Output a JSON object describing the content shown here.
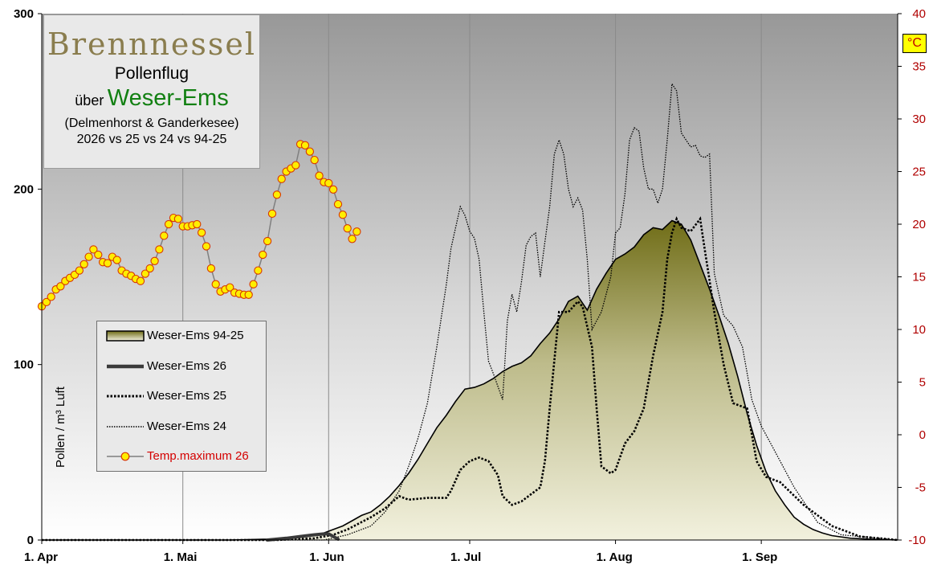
{
  "title": {
    "plant": "Brennnessel",
    "subtitle": "Pollenflug",
    "ueber": "über",
    "region": "Weser-Ems",
    "sites": "(Delmenhorst & Ganderkesee)",
    "comparison": "2026 vs 25 vs 24 vs 94-25"
  },
  "right_axis_unit": "°C",
  "legend": [
    {
      "label": "Weser-Ems 94-25"
    },
    {
      "label": "Weser-Ems 26"
    },
    {
      "label": "Weser-Ems 25"
    },
    {
      "label": "Weser-Ems 24"
    },
    {
      "label": "Temp.maximum 26"
    }
  ],
  "colors": {
    "area_top": "#6e6b14",
    "area_bottom": "#f2f1de",
    "temp_marker": "#ffee00",
    "temp_marker_edge": "#d83800",
    "temp_line": "#7f7f7f",
    "right_axis_text": "#b00000",
    "bg_top": "#989898",
    "bg_bottom": "#ffffff"
  },
  "chart_data": {
    "type": "area",
    "x_tick_labels": [
      "1. Apr",
      "1. Mai",
      "1. Jun",
      "1. Jul",
      "1. Aug",
      "1. Sep"
    ],
    "x_tick_days": [
      0,
      30,
      61,
      91,
      122,
      153
    ],
    "x_range_days": [
      0,
      182
    ],
    "ylabel": "Pollen / m³ Luft",
    "ylim": [
      0,
      300
    ],
    "y_ticks": [
      0,
      100,
      200,
      300
    ],
    "y2label": "°C",
    "y2lim": [
      -10,
      40
    ],
    "y2_ticks": [
      -10,
      -5,
      0,
      5,
      10,
      15,
      20,
      25,
      30,
      35,
      40
    ],
    "grid": "vertical lines at month starts",
    "legend_position": "left-bottom",
    "series": [
      {
        "name": "Weser-Ems 94-25",
        "style": "filled area",
        "x": [
          0,
          20,
          40,
          48,
          52,
          55,
          58,
          60,
          62,
          64,
          66,
          68,
          70,
          72,
          74,
          76,
          78,
          80,
          82,
          84,
          86,
          88,
          90,
          92,
          94,
          96,
          98,
          100,
          102,
          104,
          106,
          108,
          110,
          112,
          114,
          116,
          118,
          120,
          122,
          124,
          126,
          128,
          130,
          132,
          134,
          136,
          138,
          140,
          142,
          144,
          146,
          148,
          150,
          152,
          154,
          156,
          158,
          160,
          162,
          164,
          166,
          168,
          172,
          176,
          182
        ],
        "values": [
          0,
          0,
          0,
          0.5,
          1,
          2,
          3,
          4,
          6,
          8,
          11,
          14,
          16,
          20,
          25,
          31,
          38,
          46,
          55,
          64,
          71,
          79,
          86,
          87,
          89,
          92,
          96,
          99,
          101,
          105,
          112,
          118,
          126,
          136,
          139,
          131,
          143,
          152,
          160,
          163,
          167,
          174,
          178,
          177,
          182,
          180,
          171,
          157,
          143,
          128,
          112,
          93,
          72,
          54,
          39,
          28,
          20,
          13,
          9,
          6,
          4,
          2.5,
          1,
          0.5,
          0
        ]
      },
      {
        "name": "Weser-Ems 26",
        "style": "thick solid line",
        "x": [
          48,
          52,
          55,
          58,
          60,
          61,
          62,
          63
        ],
        "values": [
          0,
          1,
          2,
          3,
          3.5,
          3.5,
          2,
          0.5
        ]
      },
      {
        "name": "Weser-Ems 25",
        "style": "dotted thick line",
        "x": [
          0,
          50,
          58,
          62,
          65,
          70,
          73,
          76,
          78,
          82,
          86,
          87,
          89,
          91,
          93,
          95,
          97,
          98,
          100,
          102,
          104,
          106,
          107,
          108,
          110,
          112,
          113,
          114,
          115,
          117,
          118,
          119,
          120,
          121,
          122,
          124,
          126,
          128,
          130,
          132,
          133,
          134,
          135,
          136,
          138,
          140,
          141,
          142,
          143,
          145,
          147,
          150,
          152,
          154,
          157,
          162,
          168,
          174,
          182
        ],
        "values": [
          0,
          0,
          1,
          3,
          6,
          13,
          18,
          25,
          23,
          24,
          24,
          28,
          40,
          45,
          47,
          45,
          37,
          25,
          20,
          22,
          26,
          30,
          45,
          75,
          130,
          130,
          133,
          136,
          133,
          110,
          75,
          42,
          40,
          38,
          40,
          55,
          62,
          75,
          105,
          130,
          160,
          175,
          183,
          178,
          176,
          183,
          165,
          148,
          130,
          100,
          78,
          75,
          45,
          36,
          33,
          20,
          8,
          2,
          0
        ]
      },
      {
        "name": "Weser-Ems 24",
        "style": "fine dotted line",
        "x": [
          0,
          60,
          65,
          70,
          73,
          76,
          78,
          80,
          82,
          84,
          86,
          87,
          88,
          89,
          90,
          91,
          92,
          93,
          94,
          95,
          96,
          98,
          99,
          100,
          101,
          102,
          103,
          104,
          105,
          106,
          107,
          108,
          109,
          110,
          111,
          112,
          113,
          114,
          115,
          116,
          117,
          118,
          119,
          120,
          121,
          122,
          123,
          124,
          125,
          126,
          127,
          128,
          129,
          130,
          131,
          132,
          133,
          134,
          135,
          136,
          137,
          138,
          139,
          140,
          141,
          142,
          143,
          145,
          147,
          149,
          151,
          153,
          155,
          160,
          165,
          170,
          182
        ],
        "values": [
          0,
          0,
          3,
          8,
          16,
          28,
          42,
          58,
          78,
          110,
          145,
          166,
          178,
          190,
          185,
          176,
          172,
          160,
          130,
          102,
          95,
          80,
          125,
          140,
          130,
          147,
          168,
          173,
          175,
          150,
          170,
          190,
          220,
          228,
          220,
          200,
          190,
          195,
          188,
          160,
          120,
          125,
          130,
          140,
          150,
          175,
          178,
          197,
          228,
          235,
          233,
          212,
          200,
          200,
          192,
          200,
          228,
          260,
          256,
          232,
          228,
          224,
          225,
          219,
          218,
          220,
          152,
          128,
          122,
          110,
          80,
          65,
          55,
          30,
          10,
          3,
          0
        ]
      },
      {
        "name": "Temp.maximum 26",
        "axis": "right",
        "style": "line with circle markers",
        "x": [
          0,
          1,
          2,
          3,
          4,
          5,
          6,
          7,
          8,
          9,
          10,
          11,
          12,
          13,
          14,
          15,
          16,
          17,
          18,
          19,
          20,
          21,
          22,
          23,
          24,
          25,
          26,
          27,
          28,
          29,
          30,
          31,
          32,
          33,
          34,
          35,
          36,
          37,
          38,
          39,
          40,
          41,
          42,
          43,
          44,
          45,
          46,
          47,
          48,
          49,
          50,
          51,
          52,
          53,
          54,
          55,
          56,
          57,
          58,
          59,
          60,
          61,
          62,
          63,
          64,
          65,
          66,
          67
        ],
        "values": [
          12.2,
          12.6,
          13.1,
          13.8,
          14.1,
          14.6,
          14.9,
          15.2,
          15.6,
          16.2,
          16.9,
          17.6,
          17.1,
          16.4,
          16.3,
          16.9,
          16.6,
          15.6,
          15.3,
          15.1,
          14.8,
          14.6,
          15.3,
          15.8,
          16.5,
          17.6,
          18.9,
          20.0,
          20.6,
          20.5,
          19.8,
          19.8,
          19.9,
          20.0,
          19.2,
          17.9,
          15.8,
          14.3,
          13.6,
          13.8,
          14.0,
          13.5,
          13.4,
          13.3,
          13.3,
          14.3,
          15.6,
          17.1,
          18.4,
          21.0,
          22.8,
          24.3,
          25.0,
          25.3,
          25.6,
          27.6,
          27.5,
          26.9,
          26.1,
          24.6,
          24.0,
          23.9,
          23.3,
          21.9,
          20.9,
          19.6,
          18.6,
          19.3
        ]
      }
    ]
  }
}
